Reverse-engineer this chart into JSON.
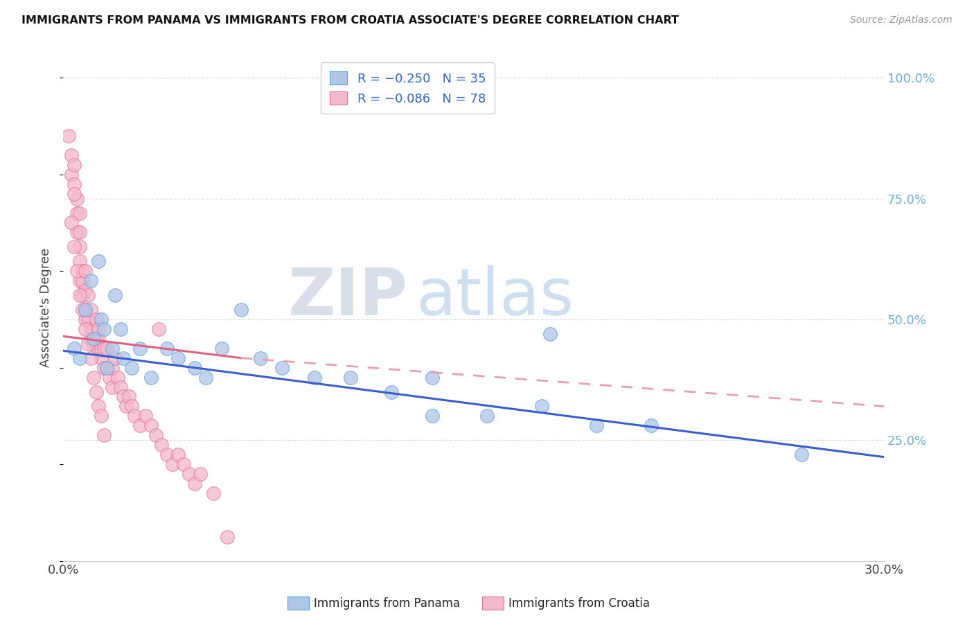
{
  "title": "IMMIGRANTS FROM PANAMA VS IMMIGRANTS FROM CROATIA ASSOCIATE'S DEGREE CORRELATION CHART",
  "source": "Source: ZipAtlas.com",
  "ylabel": "Associate's Degree",
  "xmin": 0.0,
  "xmax": 0.3,
  "ymin": 0.0,
  "ymax": 1.05,
  "panama_color": "#aec6e8",
  "panama_edge_color": "#5b9bd5",
  "croatia_color": "#f4b8cc",
  "croatia_edge_color": "#e07098",
  "blue_line_color": "#3a5fcd",
  "pink_line_color": "#e06080",
  "pink_dash_color": "#e8a0b0",
  "watermark_zip_color": "#d0d8e8",
  "watermark_atlas_color": "#b8cce4",
  "background_color": "#ffffff",
  "grid_color": "#dddddd",
  "right_tick_color": "#6baed6",
  "panama_N": 35,
  "croatia_N": 78,
  "panama_R": -0.25,
  "croatia_R": -0.086,
  "blue_line_x0": 0.0,
  "blue_line_y0": 0.435,
  "blue_line_x1": 0.3,
  "blue_line_y1": 0.215,
  "pink_line_x0": 0.0,
  "pink_line_y0": 0.465,
  "pink_line_x1_solid": 0.065,
  "pink_line_y1_solid": 0.42,
  "pink_line_x1_dash": 0.3,
  "pink_line_y1_dash": 0.32,
  "panama_scatter_x": [
    0.004,
    0.006,
    0.008,
    0.01,
    0.011,
    0.013,
    0.014,
    0.015,
    0.016,
    0.018,
    0.019,
    0.021,
    0.022,
    0.025,
    0.028,
    0.032,
    0.038,
    0.042,
    0.048,
    0.052,
    0.058,
    0.065,
    0.072,
    0.08,
    0.092,
    0.105,
    0.12,
    0.135,
    0.155,
    0.175,
    0.195,
    0.215,
    0.178,
    0.27,
    0.135
  ],
  "panama_scatter_y": [
    0.44,
    0.42,
    0.52,
    0.58,
    0.46,
    0.62,
    0.5,
    0.48,
    0.4,
    0.44,
    0.55,
    0.48,
    0.42,
    0.4,
    0.44,
    0.38,
    0.44,
    0.42,
    0.4,
    0.38,
    0.44,
    0.52,
    0.42,
    0.4,
    0.38,
    0.38,
    0.35,
    0.38,
    0.3,
    0.32,
    0.28,
    0.28,
    0.47,
    0.22,
    0.3
  ],
  "croatia_scatter_x": [
    0.002,
    0.003,
    0.003,
    0.004,
    0.004,
    0.005,
    0.005,
    0.005,
    0.006,
    0.006,
    0.006,
    0.006,
    0.007,
    0.007,
    0.007,
    0.008,
    0.008,
    0.008,
    0.009,
    0.009,
    0.01,
    0.01,
    0.01,
    0.011,
    0.011,
    0.012,
    0.012,
    0.013,
    0.013,
    0.013,
    0.014,
    0.014,
    0.015,
    0.015,
    0.016,
    0.016,
    0.017,
    0.018,
    0.018,
    0.019,
    0.02,
    0.021,
    0.022,
    0.023,
    0.024,
    0.025,
    0.026,
    0.028,
    0.03,
    0.032,
    0.034,
    0.036,
    0.038,
    0.04,
    0.042,
    0.044,
    0.046,
    0.048,
    0.05,
    0.055,
    0.003,
    0.004,
    0.005,
    0.006,
    0.007,
    0.008,
    0.009,
    0.01,
    0.011,
    0.012,
    0.013,
    0.014,
    0.015,
    0.004,
    0.006,
    0.008,
    0.035,
    0.06
  ],
  "croatia_scatter_y": [
    0.88,
    0.84,
    0.8,
    0.82,
    0.78,
    0.75,
    0.72,
    0.68,
    0.72,
    0.65,
    0.62,
    0.58,
    0.6,
    0.55,
    0.58,
    0.56,
    0.5,
    0.52,
    0.5,
    0.55,
    0.48,
    0.52,
    0.46,
    0.48,
    0.45,
    0.46,
    0.5,
    0.44,
    0.46,
    0.48,
    0.42,
    0.44,
    0.4,
    0.44,
    0.4,
    0.44,
    0.38,
    0.36,
    0.4,
    0.42,
    0.38,
    0.36,
    0.34,
    0.32,
    0.34,
    0.32,
    0.3,
    0.28,
    0.3,
    0.28,
    0.26,
    0.24,
    0.22,
    0.2,
    0.22,
    0.2,
    0.18,
    0.16,
    0.18,
    0.14,
    0.7,
    0.65,
    0.6,
    0.55,
    0.52,
    0.48,
    0.45,
    0.42,
    0.38,
    0.35,
    0.32,
    0.3,
    0.26,
    0.76,
    0.68,
    0.6,
    0.48,
    0.05
  ]
}
